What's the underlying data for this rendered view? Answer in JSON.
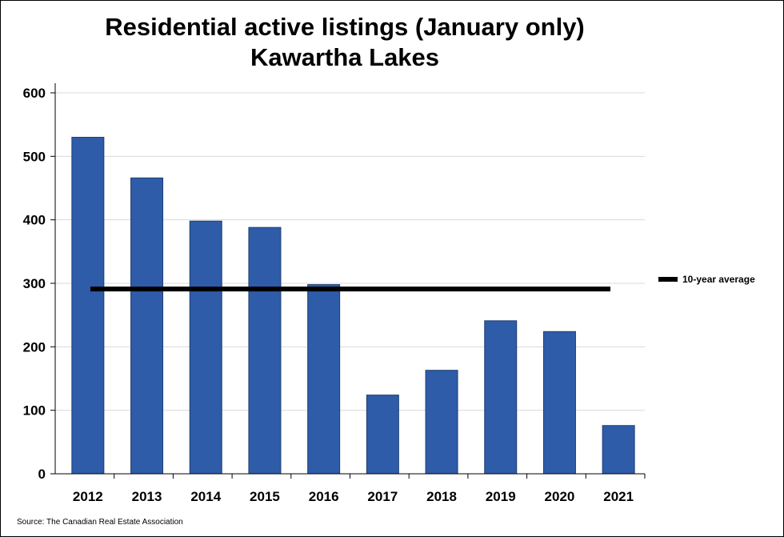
{
  "chart_data": {
    "type": "bar",
    "title": "Residential active listings (January only)",
    "subtitle": "Kawartha Lakes",
    "categories": [
      "2012",
      "2013",
      "2014",
      "2015",
      "2016",
      "2017",
      "2018",
      "2019",
      "2020",
      "2021"
    ],
    "values": [
      530,
      466,
      398,
      388,
      298,
      124,
      163,
      241,
      224,
      76
    ],
    "ylim": [
      0,
      600
    ],
    "yticks": [
      0,
      100,
      200,
      300,
      400,
      500,
      600
    ],
    "grid": true,
    "bar_color": "#2f5ca8",
    "reference_line": {
      "name": "10-year average",
      "value": 291,
      "color": "#000000"
    },
    "legend_position": "right"
  },
  "source": "Source: The Canadian Real Estate Association"
}
